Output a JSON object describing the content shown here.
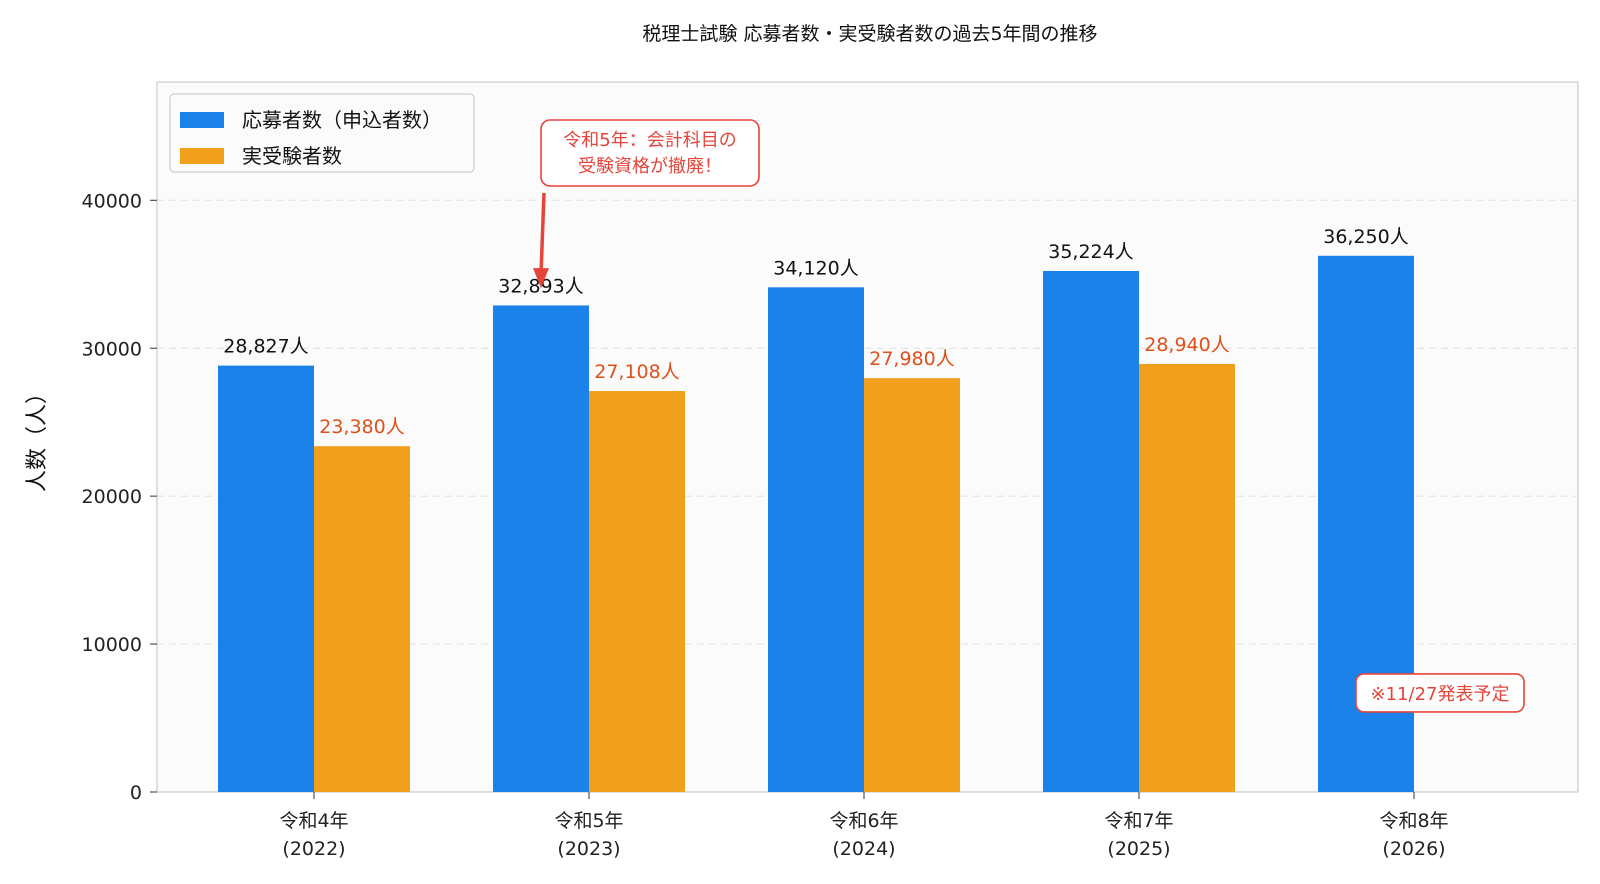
{
  "chart_data": {
    "type": "bar",
    "title": "税理士試験 応募者数・実受験者数の過去5年間の推移",
    "xlabel": "",
    "ylabel": "人数（人）",
    "ylim": [
      0,
      48000
    ],
    "yticks": [
      0,
      10000,
      20000,
      30000,
      40000
    ],
    "grid": "y-dashed",
    "legend_position": "top-left",
    "categories": [
      [
        "令和4年",
        "(2022)"
      ],
      [
        "令和5年",
        "(2023)"
      ],
      [
        "令和6年",
        "(2024)"
      ],
      [
        "令和7年",
        "(2025)"
      ],
      [
        "令和8年",
        "(2026)"
      ]
    ],
    "series": [
      {
        "name": "応募者数（申込者数）",
        "color": "#1a82e8",
        "label_color": "#111111",
        "values": [
          28827,
          32893,
          34120,
          35224,
          36250
        ],
        "labels": [
          "28,827人",
          "32,893人",
          "34,120人",
          "35,224人",
          "36,250人"
        ]
      },
      {
        "name": "実受験者数",
        "color": "#f0a01c",
        "label_color": "#e0501a",
        "values": [
          23380,
          27108,
          27980,
          28940,
          null
        ],
        "labels": [
          "23,380人",
          "27,108人",
          "27,980人",
          "28,940人",
          null
        ]
      }
    ],
    "annotations": [
      {
        "text_lines": [
          "令和5年：会計科目の",
          "受験資格が撤廃！"
        ],
        "category_index": 1,
        "series_index": 0,
        "value": 34200,
        "style": "callout-arrow",
        "color": "#e5453a"
      },
      {
        "text": "※11/27発表予定",
        "category_index": 4,
        "series_index": 1,
        "value": 6700,
        "style": "badge",
        "color": "#e5453a"
      }
    ],
    "colors": {
      "plot_bg": "#fbfbfb",
      "grid": "#e3e3e3",
      "axis": "#cccccc",
      "annotation": "#e5453a"
    }
  }
}
